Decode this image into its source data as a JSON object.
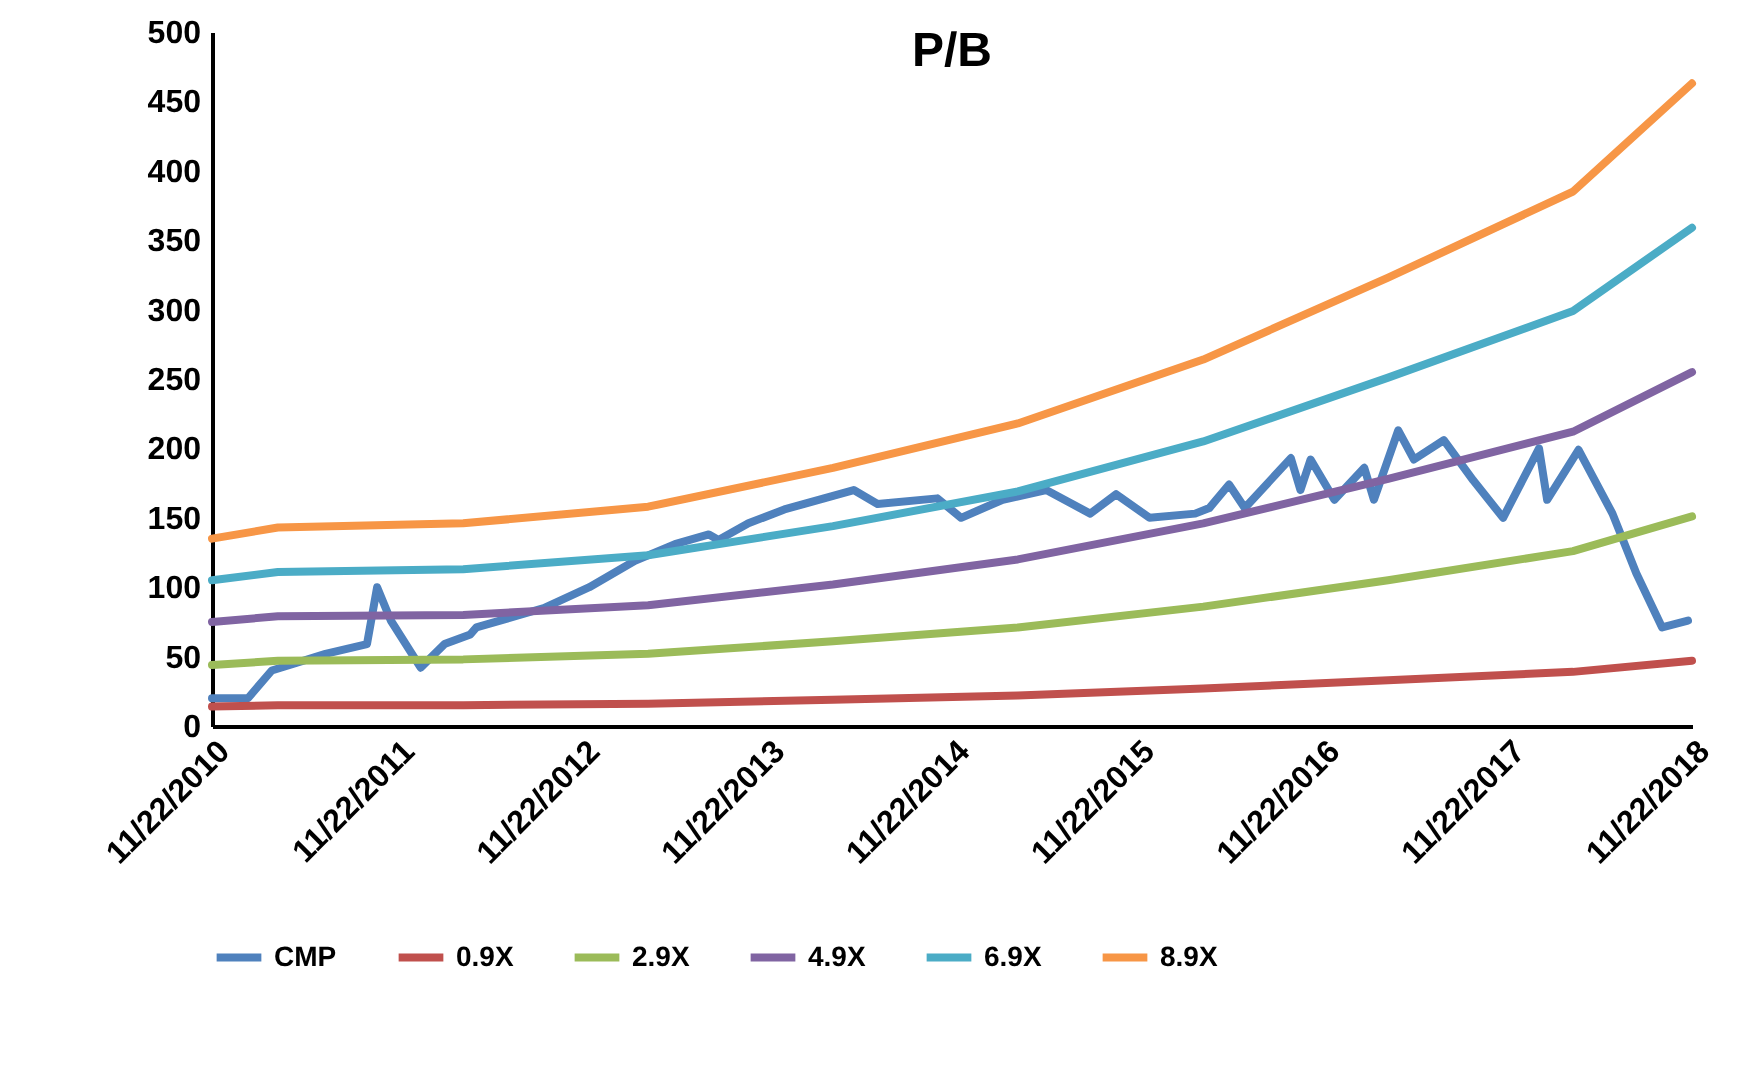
{
  "chart_data": {
    "type": "line",
    "title": "P/B",
    "x": [
      "2010-11-22",
      "2011-04-01",
      "2012-04-01",
      "2013-04-01",
      "2014-04-01",
      "2015-04-01",
      "2016-04-01",
      "2017-04-01",
      "2018-04-01",
      "2018-11-22"
    ],
    "xlim": [
      "2010-11-22",
      "2018-11-22"
    ],
    "xticks": [
      {
        "value": "2010-11-22",
        "label": "11/22/2010"
      },
      {
        "value": "2011-11-22",
        "label": "11/22/2011"
      },
      {
        "value": "2012-11-22",
        "label": "11/22/2012"
      },
      {
        "value": "2013-11-22",
        "label": "11/22/2013"
      },
      {
        "value": "2014-11-22",
        "label": "11/22/2014"
      },
      {
        "value": "2015-11-22",
        "label": "11/22/2015"
      },
      {
        "value": "2016-11-22",
        "label": "11/22/2016"
      },
      {
        "value": "2017-11-22",
        "label": "11/22/2017"
      },
      {
        "value": "2018-11-22",
        "label": "11/22/2018"
      }
    ],
    "ylim": [
      0,
      500
    ],
    "yticks": [
      0,
      50,
      100,
      150,
      200,
      250,
      300,
      350,
      400,
      450,
      500
    ],
    "grid": false,
    "legend": "bottom",
    "series": [
      {
        "name": "CMP",
        "color": "#4f81bd",
        "x": [
          "2010-11-22",
          "2011-02-01",
          "2011-03-20",
          "2011-07-04",
          "2011-09-24",
          "2011-10-14",
          "2011-11-10",
          "2012-01-08",
          "2012-02-24",
          "2012-04-15",
          "2012-04-27",
          "2012-09-07",
          "2012-12-06",
          "2013-03-06",
          "2013-05-24",
          "2013-07-30",
          "2013-08-18",
          "2013-10-16",
          "2013-12-26",
          "2014-05-12",
          "2014-06-28",
          "2014-10-24",
          "2014-12-10",
          "2015-03-02",
          "2015-05-27",
          "2015-08-22",
          "2015-10-12",
          "2015-12-17",
          "2016-03-16",
          "2016-04-13",
          "2016-05-22",
          "2016-06-22",
          "2016-09-21",
          "2016-10-10",
          "2016-10-30",
          "2016-12-16",
          "2017-02-13",
          "2017-03-04",
          "2017-04-21",
          "2017-05-22",
          "2017-07-20",
          "2017-09-16",
          "2017-11-14",
          "2018-01-24",
          "2018-02-09",
          "2018-04-12",
          "2018-06-18",
          "2018-08-04",
          "2018-09-24",
          "2018-11-14"
        ],
        "values": [
          20,
          20,
          40,
          52,
          59,
          100,
          76,
          42,
          59,
          66,
          71,
          85,
          100,
          119,
          131,
          138,
          134,
          146,
          156,
          170,
          160,
          164,
          150,
          163,
          170,
          153,
          167,
          150,
          153,
          157,
          174,
          157,
          193,
          170,
          192,
          163,
          186,
          163,
          213,
          192,
          206,
          177,
          150,
          200,
          163,
          199,
          153,
          110,
          71,
          76
        ]
      },
      {
        "name": "0.9X",
        "color": "#c0504d",
        "values": [
          14,
          15,
          15,
          16,
          19,
          22,
          27,
          33,
          39,
          47
        ]
      },
      {
        "name": "2.9X",
        "color": "#9bbb59",
        "values": [
          44,
          47,
          48,
          52,
          61,
          71,
          86,
          105,
          126,
          151
        ]
      },
      {
        "name": "4.9X",
        "color": "#8064a2",
        "values": [
          75,
          79,
          80,
          87,
          102,
          120,
          146,
          178,
          212,
          255
        ]
      },
      {
        "name": "6.9X",
        "color": "#4bacc6",
        "values": [
          105,
          111,
          113,
          123,
          144,
          169,
          205,
          251,
          299,
          359
        ]
      },
      {
        "name": "8.9X",
        "color": "#f79646",
        "values": [
          135,
          143,
          146,
          158,
          186,
          218,
          264,
          323,
          385,
          463
        ]
      }
    ]
  }
}
